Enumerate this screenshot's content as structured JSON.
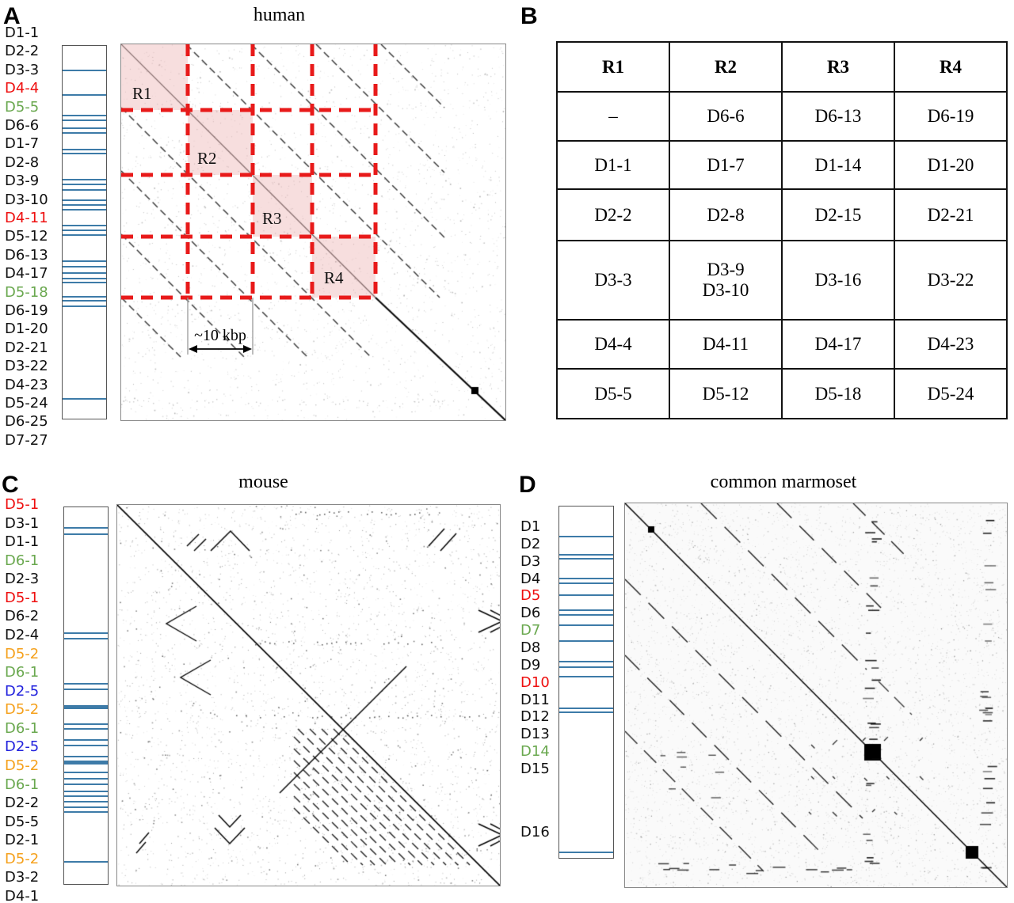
{
  "colors": {
    "accent_red": "#e81a1a",
    "pink_fill": "#e89a9a",
    "band_blue": "#3d7ba8",
    "label_black": "#111111",
    "label_red": "#ee0f0f",
    "label_green": "#6aa84f",
    "label_orange": "#f5a11d",
    "label_blue": "#2222dd"
  },
  "panel_a": {
    "letter": "A",
    "title": "human",
    "scale_label": "~10 kbp",
    "region_labels": [
      "R1",
      "R2",
      "R3",
      "R4"
    ],
    "labels": [
      {
        "text": "D1-1",
        "color": "#111111"
      },
      {
        "text": "D2-2",
        "color": "#111111"
      },
      {
        "text": "D3-3",
        "color": "#111111"
      },
      {
        "text": "D4-4",
        "color": "#ee0f0f"
      },
      {
        "text": "D5-5",
        "color": "#6aa84f"
      },
      {
        "text": "D6-6",
        "color": "#111111"
      },
      {
        "text": "D1-7",
        "color": "#111111"
      },
      {
        "text": "D2-8",
        "color": "#111111"
      },
      {
        "text": "D3-9",
        "color": "#111111"
      },
      {
        "text": "D3-10",
        "color": "#111111"
      },
      {
        "text": "D4-11",
        "color": "#ee0f0f"
      },
      {
        "text": "D5-12",
        "color": "#111111"
      },
      {
        "text": "D6-13",
        "color": "#111111"
      },
      {
        "text": "D4-17",
        "color": "#111111"
      },
      {
        "text": "D5-18",
        "color": "#6aa84f"
      },
      {
        "text": "D6-19",
        "color": "#111111"
      },
      {
        "text": "D1-20",
        "color": "#111111"
      },
      {
        "text": "D2-21",
        "color": "#111111"
      },
      {
        "text": "D3-22",
        "color": "#111111"
      },
      {
        "text": "D4-23",
        "color": "#111111"
      },
      {
        "text": "D5-24",
        "color": "#111111"
      },
      {
        "text": "D6-25",
        "color": "#111111"
      },
      {
        "text": "D7-27",
        "color": "#111111"
      }
    ],
    "bands": [
      0.066,
      0.131,
      0.188,
      0.201,
      0.222,
      0.235,
      0.279,
      0.29,
      0.359,
      0.372,
      0.387,
      0.414,
      0.427,
      0.44,
      0.482,
      0.495,
      0.507,
      0.577,
      0.592,
      0.609,
      0.624,
      0.636,
      0.674,
      0.685,
      0.698,
      0.947
    ],
    "thick_bands": []
  },
  "panel_b": {
    "letter": "B",
    "table": {
      "headers": [
        "R1",
        "R2",
        "R3",
        "R4"
      ],
      "rows": [
        [
          "–",
          "D6-6",
          "D6-13",
          "D6-19"
        ],
        [
          "D1-1",
          "D1-7",
          "D1-14",
          "D1-20"
        ],
        [
          "D2-2",
          "D2-8",
          "D2-15",
          "D2-21"
        ],
        [
          "D3-3",
          "D3-9\nD3-10",
          "D3-16",
          "D3-22"
        ],
        [
          "D4-4",
          "D4-11",
          "D4-17",
          "D4-23"
        ],
        [
          "D5-5",
          "D5-12",
          "D5-18",
          "D5-24"
        ]
      ]
    }
  },
  "panel_c": {
    "letter": "C",
    "title": "mouse",
    "labels": [
      {
        "text": "D5-1",
        "color": "#ee0f0f"
      },
      {
        "text": "D3-1",
        "color": "#111111"
      },
      {
        "text": "D1-1",
        "color": "#111111"
      },
      {
        "text": "D6-1",
        "color": "#6aa84f"
      },
      {
        "text": "D2-3",
        "color": "#111111"
      },
      {
        "text": "D5-1",
        "color": "#ee0f0f"
      },
      {
        "text": "D6-2",
        "color": "#111111"
      },
      {
        "text": "D2-4",
        "color": "#111111"
      },
      {
        "text": "D5-2",
        "color": "#f5a11d"
      },
      {
        "text": "D6-1",
        "color": "#6aa84f"
      },
      {
        "text": "D2-5",
        "color": "#2222dd"
      },
      {
        "text": "D5-2",
        "color": "#f5a11d"
      },
      {
        "text": "D6-1",
        "color": "#6aa84f"
      },
      {
        "text": "D2-5",
        "color": "#2222dd"
      },
      {
        "text": "D5-2",
        "color": "#f5a11d"
      },
      {
        "text": "D6-1",
        "color": "#6aa84f"
      },
      {
        "text": "D2-2",
        "color": "#111111"
      },
      {
        "text": "D5-5",
        "color": "#111111"
      },
      {
        "text": "D2-1",
        "color": "#111111"
      },
      {
        "text": "D5-2",
        "color": "#f5a11d"
      },
      {
        "text": "D3-2",
        "color": "#111111"
      },
      {
        "text": "D4-1",
        "color": "#111111"
      }
    ],
    "bands": [
      0.054,
      0.071,
      0.335,
      0.349,
      0.469,
      0.483,
      0.529,
      0.575,
      0.588,
      0.619,
      0.632,
      0.663,
      0.676,
      0.705,
      0.722,
      0.736,
      0.755,
      0.768,
      0.782,
      0.797,
      0.81,
      0.941
    ],
    "thick_bands": [
      0.529,
      0.676
    ]
  },
  "panel_d": {
    "letter": "D",
    "title": "common marmoset",
    "labels": [
      {
        "text": "D1",
        "color": "#111111"
      },
      {
        "text": "D2",
        "color": "#111111"
      },
      {
        "text": "D3",
        "color": "#111111"
      },
      {
        "text": "D4",
        "color": "#111111"
      },
      {
        "text": "D5",
        "color": "#ee0f0f"
      },
      {
        "text": "D6",
        "color": "#111111"
      },
      {
        "text": "D7",
        "color": "#6aa84f"
      },
      {
        "text": "D8",
        "color": "#111111"
      },
      {
        "text": "D9",
        "color": "#111111"
      },
      {
        "text": "D10",
        "color": "#ee0f0f"
      },
      {
        "text": "D11",
        "color": "#111111"
      },
      {
        "text": "D12",
        "color": "#111111"
      },
      {
        "text": "D13",
        "color": "#111111"
      },
      {
        "text": "D14",
        "color": "#6aa84f"
      },
      {
        "text": "D15",
        "color": "#111111"
      },
      {
        "text": "D16",
        "color": "#111111"
      }
    ],
    "bands": [
      0.085,
      0.137,
      0.15,
      0.206,
      0.22,
      0.253,
      0.296,
      0.309,
      0.339,
      0.383,
      0.442,
      0.457,
      0.484,
      0.574,
      0.587,
      0.984
    ],
    "thick_bands": []
  }
}
